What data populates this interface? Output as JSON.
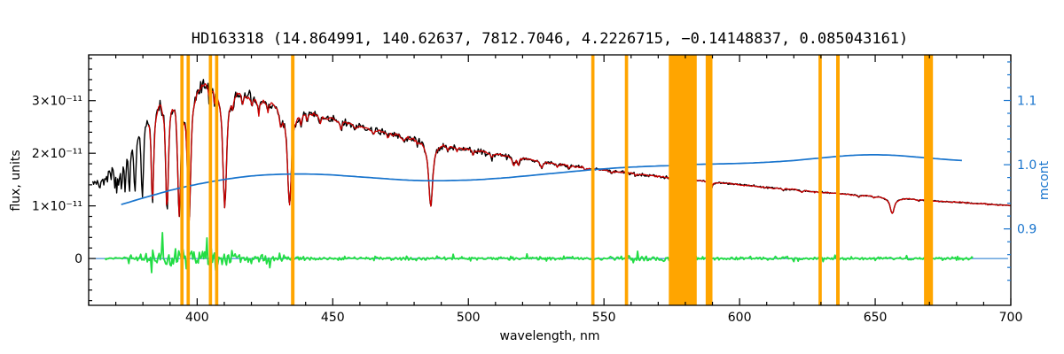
{
  "figure": {
    "background": "#ffffff"
  },
  "chart_data": {
    "type": "line",
    "title": "HD163318  (14.864991, 140.62637, 7812.7046, 4.2226715, −0.14148837, 0.085043161)",
    "star_id": "HD163318",
    "header_values": [
      14.864991,
      140.62637,
      7812.7046,
      4.2226715,
      -0.14148837,
      0.085043161
    ],
    "xlabel": "wavelength, nm",
    "ylabel_left": "flux, units",
    "ylabel_right": "mcont",
    "xlim": [
      360,
      700
    ],
    "x_ticks": [
      400,
      450,
      500,
      550,
      600,
      650,
      700
    ],
    "x_minor_step": 10,
    "flux_unit_scale": "1e-11",
    "ylim_left": [
      -0.89,
      3.87
    ],
    "y_ticks_left": [
      0,
      1,
      2,
      3
    ],
    "y_tick_labels_left": [
      "0",
      "1×10⁻¹¹",
      "2×10⁻¹¹",
      "3×10⁻¹¹"
    ],
    "y_minor_step_left": 0.2,
    "ylim_right": [
      0.781,
      1.171
    ],
    "y_ticks_right": [
      0.9,
      1.0,
      1.1
    ],
    "y_tick_labels_right": [
      "0.9",
      "1.0",
      "1.1"
    ],
    "y_minor_step_right": 0.02,
    "colors": {
      "observed": "#000000",
      "fit": "#cc0000",
      "mcont": "#1874cd",
      "residual": "#22dd44",
      "mask": "#ffa500",
      "frame": "#000000",
      "right_axis": "#1874cd"
    },
    "masks_nm": [
      [
        393.8,
        395.0
      ],
      [
        396.1,
        397.3
      ],
      [
        404.3,
        405.5
      ],
      [
        406.6,
        407.8
      ],
      [
        434.6,
        435.9
      ],
      [
        545.3,
        546.5
      ],
      [
        557.7,
        558.9
      ],
      [
        573.9,
        584.2
      ],
      [
        587.5,
        590.0
      ],
      [
        629.1,
        630.3
      ],
      [
        635.6,
        636.9
      ],
      [
        668.0,
        671.3
      ]
    ],
    "series": {
      "observed": {
        "color": "#000000",
        "range_nm": [
          361.5,
          700
        ],
        "continuum_1e11": [
          [
            361.5,
            1.42
          ],
          [
            364,
            1.46
          ],
          [
            366,
            1.52
          ],
          [
            368,
            1.62
          ],
          [
            370,
            1.78
          ],
          [
            372,
            2.0
          ],
          [
            374,
            2.2
          ],
          [
            376,
            2.42
          ],
          [
            378,
            2.6
          ],
          [
            380,
            2.74
          ],
          [
            382,
            2.85
          ],
          [
            384,
            2.95
          ],
          [
            386,
            3.03
          ],
          [
            388,
            3.1
          ],
          [
            390,
            3.16
          ],
          [
            392,
            3.2
          ],
          [
            394,
            3.24
          ],
          [
            396,
            3.26
          ],
          [
            398,
            3.28
          ],
          [
            400,
            3.29
          ],
          [
            402,
            3.3
          ],
          [
            404,
            3.3
          ],
          [
            406,
            3.28
          ],
          [
            408,
            3.26
          ],
          [
            410,
            3.23
          ],
          [
            412,
            3.2
          ],
          [
            414,
            3.16
          ],
          [
            416,
            3.12
          ],
          [
            418,
            3.08
          ],
          [
            420,
            3.05
          ],
          [
            424,
            2.99
          ],
          [
            428,
            2.93
          ],
          [
            432,
            2.88
          ],
          [
            436,
            2.83
          ],
          [
            440,
            2.78
          ],
          [
            444,
            2.72
          ],
          [
            448,
            2.67
          ],
          [
            452,
            2.61
          ],
          [
            456,
            2.56
          ],
          [
            460,
            2.51
          ],
          [
            464,
            2.46
          ],
          [
            468,
            2.41
          ],
          [
            472,
            2.36
          ],
          [
            476,
            2.31
          ],
          [
            480,
            2.27
          ],
          [
            484,
            2.23
          ],
          [
            488,
            2.19
          ],
          [
            492,
            2.15
          ],
          [
            496,
            2.11
          ],
          [
            500,
            2.07
          ],
          [
            505,
            2.03
          ],
          [
            510,
            1.98
          ],
          [
            515,
            1.94
          ],
          [
            520,
            1.9
          ],
          [
            525,
            1.86
          ],
          [
            530,
            1.82
          ],
          [
            535,
            1.78
          ],
          [
            540,
            1.75
          ],
          [
            545,
            1.71
          ],
          [
            550,
            1.68
          ],
          [
            555,
            1.65
          ],
          [
            560,
            1.62
          ],
          [
            565,
            1.59
          ],
          [
            570,
            1.56
          ],
          [
            575,
            1.53
          ],
          [
            580,
            1.5
          ],
          [
            585,
            1.48
          ],
          [
            590,
            1.45
          ],
          [
            595,
            1.43
          ],
          [
            600,
            1.4
          ],
          [
            605,
            1.38
          ],
          [
            610,
            1.35
          ],
          [
            615,
            1.33
          ],
          [
            620,
            1.31
          ],
          [
            625,
            1.28
          ],
          [
            630,
            1.26
          ],
          [
            635,
            1.24
          ],
          [
            640,
            1.22
          ],
          [
            645,
            1.2
          ],
          [
            650,
            1.18
          ],
          [
            655,
            1.16
          ],
          [
            660,
            1.14
          ],
          [
            665,
            1.12
          ],
          [
            670,
            1.1
          ],
          [
            675,
            1.08
          ],
          [
            680,
            1.07
          ],
          [
            685,
            1.05
          ],
          [
            690,
            1.04
          ],
          [
            695,
            1.02
          ],
          [
            700,
            1.01
          ]
        ],
        "absorption_lines": [
          [
            369.76,
            0.23,
            0.24
          ],
          [
            370.39,
            0.26,
            0.26
          ],
          [
            371.2,
            0.29,
            0.28
          ],
          [
            372.19,
            0.33,
            0.3
          ],
          [
            373.44,
            0.38,
            0.35
          ],
          [
            375.02,
            0.44,
            0.4
          ],
          [
            377.06,
            0.5,
            0.45
          ],
          [
            379.79,
            0.57,
            0.5
          ],
          [
            383.54,
            0.64,
            0.55
          ],
          [
            388.9,
            0.72,
            0.6
          ],
          [
            393.37,
            0.75,
            0.65
          ],
          [
            397.01,
            0.79,
            0.75
          ],
          [
            410.17,
            0.7,
            0.8
          ],
          [
            434.05,
            0.64,
            0.85
          ],
          [
            486.13,
            0.55,
            0.85
          ],
          [
            656.28,
            0.26,
            0.9
          ],
          [
            404.58,
            0.1,
            0.3
          ],
          [
            406.36,
            0.08,
            0.3
          ],
          [
            413.2,
            0.07,
            0.3
          ],
          [
            416.7,
            0.06,
            0.3
          ],
          [
            420.2,
            0.05,
            0.3
          ],
          [
            422.67,
            0.1,
            0.3
          ],
          [
            426.05,
            0.06,
            0.3
          ],
          [
            430.79,
            0.1,
            0.6
          ],
          [
            438.35,
            0.09,
            0.4
          ],
          [
            440.48,
            0.06,
            0.3
          ],
          [
            445.48,
            0.05,
            0.3
          ],
          [
            453.1,
            0.05,
            0.4
          ],
          [
            458.3,
            0.04,
            0.35
          ],
          [
            464.9,
            0.04,
            0.35
          ],
          [
            470.3,
            0.04,
            0.35
          ],
          [
            476.2,
            0.04,
            0.35
          ],
          [
            481.1,
            0.04,
            0.3
          ],
          [
            492.4,
            0.05,
            0.35
          ],
          [
            495.8,
            0.04,
            0.3
          ],
          [
            501.8,
            0.05,
            0.35
          ],
          [
            508.7,
            0.04,
            0.3
          ],
          [
            516.7,
            0.08,
            0.5
          ],
          [
            518.4,
            0.07,
            0.4
          ],
          [
            527.0,
            0.07,
            0.45
          ],
          [
            532.8,
            0.04,
            0.35
          ],
          [
            537.1,
            0.04,
            0.3
          ],
          [
            543.0,
            0.03,
            0.3
          ],
          [
            552.8,
            0.03,
            0.3
          ],
          [
            561.6,
            0.03,
            0.3
          ],
          [
            578.0,
            0.03,
            0.3
          ],
          [
            588.99,
            0.1,
            0.35
          ],
          [
            589.59,
            0.08,
            0.35
          ],
          [
            616.2,
            0.03,
            0.3
          ],
          [
            623.0,
            0.03,
            0.3
          ],
          [
            643.9,
            0.03,
            0.3
          ],
          [
            649.5,
            0.03,
            0.3
          ],
          [
            666.0,
            0.02,
            0.3
          ]
        ],
        "noise_sigma_regions": [
          [
            373,
            0.085
          ],
          [
            380,
            0.05
          ],
          [
            420,
            0.035
          ],
          [
            520,
            0.028
          ],
          [
            580,
            0.018
          ],
          [
            620,
            0.012
          ],
          [
            701,
            0.009
          ]
        ]
      },
      "fit": {
        "color": "#cc0000",
        "range_nm": [
          382,
          700
        ],
        "noise_sigma": 0.012
      },
      "mcont": {
        "color": "#1874cd",
        "axis": "right",
        "points": [
          [
            372,
            0.938
          ],
          [
            376,
            0.943
          ],
          [
            380,
            0.948
          ],
          [
            385,
            0.954
          ],
          [
            390,
            0.96
          ],
          [
            395,
            0.965
          ],
          [
            400,
            0.9695
          ],
          [
            405,
            0.9735
          ],
          [
            410,
            0.977
          ],
          [
            415,
            0.98
          ],
          [
            420,
            0.9825
          ],
          [
            425,
            0.984
          ],
          [
            430,
            0.985
          ],
          [
            435,
            0.9855
          ],
          [
            440,
            0.9855
          ],
          [
            445,
            0.985
          ],
          [
            450,
            0.984
          ],
          [
            455,
            0.9825
          ],
          [
            460,
            0.981
          ],
          [
            465,
            0.9795
          ],
          [
            470,
            0.978
          ],
          [
            475,
            0.9765
          ],
          [
            480,
            0.9755
          ],
          [
            485,
            0.975
          ],
          [
            490,
            0.975
          ],
          [
            495,
            0.9755
          ],
          [
            500,
            0.976
          ],
          [
            505,
            0.977
          ],
          [
            510,
            0.9785
          ],
          [
            515,
            0.98
          ],
          [
            520,
            0.982
          ],
          [
            525,
            0.984
          ],
          [
            530,
            0.986
          ],
          [
            535,
            0.988
          ],
          [
            540,
            0.99
          ],
          [
            545,
            0.992
          ],
          [
            550,
            0.9935
          ],
          [
            555,
            0.995
          ],
          [
            560,
            0.9962
          ],
          [
            565,
            0.9972
          ],
          [
            570,
            0.998
          ],
          [
            574,
            0.9985
          ],
          [
            584,
            1.0005
          ],
          [
            590,
            1.001
          ],
          [
            595,
            1.0015
          ],
          [
            600,
            1.002
          ],
          [
            605,
            1.0028
          ],
          [
            610,
            1.0038
          ],
          [
            615,
            1.005
          ],
          [
            620,
            1.0065
          ],
          [
            625,
            1.0085
          ],
          [
            630,
            1.0105
          ],
          [
            635,
            1.0125
          ],
          [
            640,
            1.0142
          ],
          [
            645,
            1.0152
          ],
          [
            650,
            1.0155
          ],
          [
            655,
            1.015
          ],
          [
            660,
            1.0138
          ],
          [
            665,
            1.012
          ],
          [
            670,
            1.0102
          ],
          [
            675,
            1.0085
          ],
          [
            680,
            1.007
          ],
          [
            682,
            1.0065
          ]
        ]
      },
      "residual": {
        "color": "#22dd44",
        "range_nm": [
          366,
          686
        ],
        "zero_line_nm": [
          361,
          699
        ],
        "zero_line_color": "#1874cd",
        "base_amp_1e11": 0.035,
        "amp_regions": [
          [
            374,
            0.03
          ],
          [
            382,
            0.07
          ],
          [
            414,
            0.2
          ],
          [
            436,
            0.07
          ],
          [
            550,
            0.035
          ],
          [
            580,
            0.05
          ],
          [
            687,
            0.03
          ]
        ]
      }
    }
  }
}
